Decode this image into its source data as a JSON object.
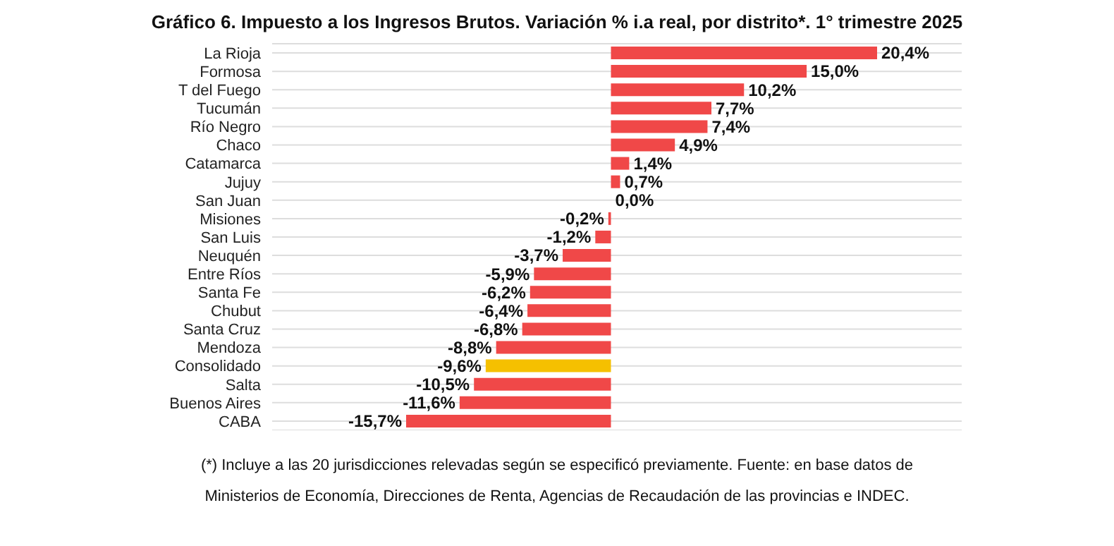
{
  "chart_data": {
    "type": "bar",
    "orientation": "horizontal",
    "title": "Gráfico 6. Impuesto a los Ingresos Brutos. Variación % i.a real, por distrito*. 1° trimestre 2025",
    "categories": [
      "La Rioja",
      "Formosa",
      "T del Fuego",
      "Tucumán",
      "Río Negro",
      "Chaco",
      "Catamarca",
      "Jujuy",
      "San Juan",
      "Misiones",
      "San Luis",
      "Neuquén",
      "Entre Ríos",
      "Santa Fe",
      "Chubut",
      "Santa Cruz",
      "Mendoza",
      "Consolidado",
      "Salta",
      "Buenos Aires",
      "CABA"
    ],
    "values": [
      20.4,
      15.0,
      10.2,
      7.7,
      7.4,
      4.9,
      1.4,
      0.7,
      0.0,
      -0.2,
      -1.2,
      -3.7,
      -5.9,
      -6.2,
      -6.4,
      -6.8,
      -8.8,
      -9.6,
      -10.5,
      -11.6,
      -15.7
    ],
    "value_labels": [
      "20,4%",
      "15,0%",
      "10,2%",
      "7,7%",
      "7,4%",
      "4,9%",
      "1,4%",
      "0,7%",
      "0,0%",
      "-0,2%",
      "-1,2%",
      "-3,7%",
      "-5,9%",
      "-6,2%",
      "-6,4%",
      "-6,8%",
      "-8,8%",
      "-9,6%",
      "-10,5%",
      "-11,6%",
      "-15,7%"
    ],
    "colors": [
      "#f04848",
      "#f04848",
      "#f04848",
      "#f04848",
      "#f04848",
      "#f04848",
      "#f04848",
      "#f04848",
      "#f04848",
      "#f04848",
      "#f04848",
      "#f04848",
      "#f04848",
      "#f04848",
      "#f04848",
      "#f04848",
      "#f04848",
      "#f5c000",
      "#f04848",
      "#f04848",
      "#f04848"
    ],
    "grid": "y",
    "tick_labels": "y",
    "annotations": [
      "(*) Incluye a las 20 jurisdicciones relevadas según se especificó previamente. Fuente: en base datos de Ministerios de Economía, Direcciones de Renta, Agencias de Recaudación de las provincias e INDEC."
    ]
  }
}
